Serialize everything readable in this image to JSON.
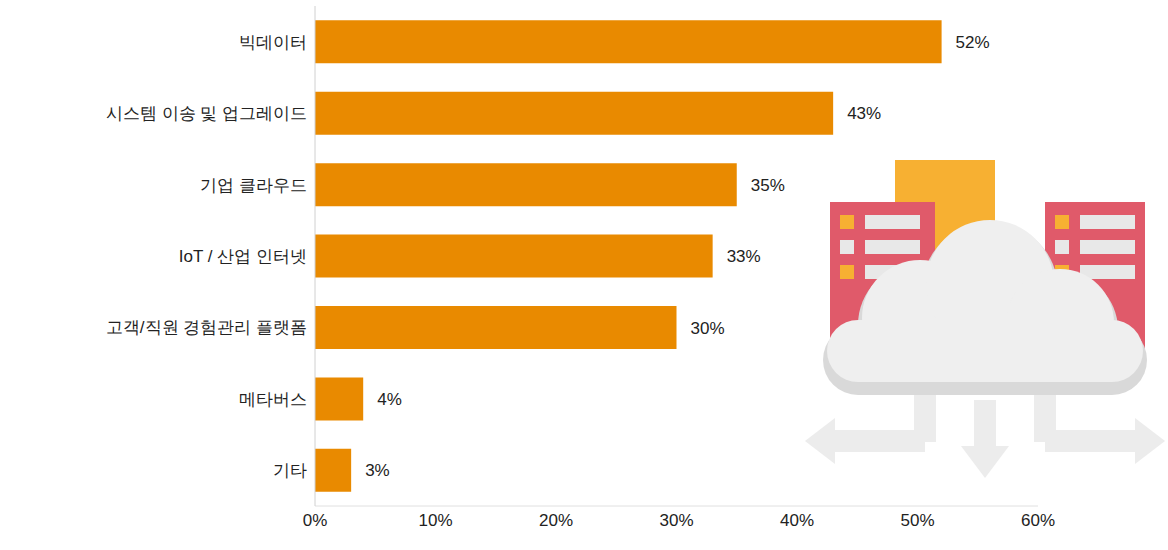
{
  "chart_data": {
    "type": "bar",
    "orientation": "horizontal",
    "categories": [
      "빅데이터",
      "시스템 이송 및 업그레이드",
      "기업 클라우드",
      "IoT / 산업 인터넷",
      "고객/직원 경험관리 플랫폼",
      "메타버스",
      "기타"
    ],
    "values": [
      52,
      43,
      35,
      33,
      30,
      4,
      3
    ],
    "value_labels": [
      "52%",
      "43%",
      "35%",
      "33%",
      "30%",
      "4%",
      "3%"
    ],
    "data_labels": true,
    "color": "#e98a00",
    "xlim": [
      0,
      60
    ],
    "xticks": [
      {
        "value": 0,
        "label": "0%"
      },
      {
        "value": 10,
        "label": "10%"
      },
      {
        "value": 20,
        "label": "20%"
      },
      {
        "value": 30,
        "label": "30%"
      },
      {
        "value": 40,
        "label": "40%"
      },
      {
        "value": 50,
        "label": "50%"
      },
      {
        "value": 60,
        "label": "60%"
      }
    ],
    "grid": false
  }
}
